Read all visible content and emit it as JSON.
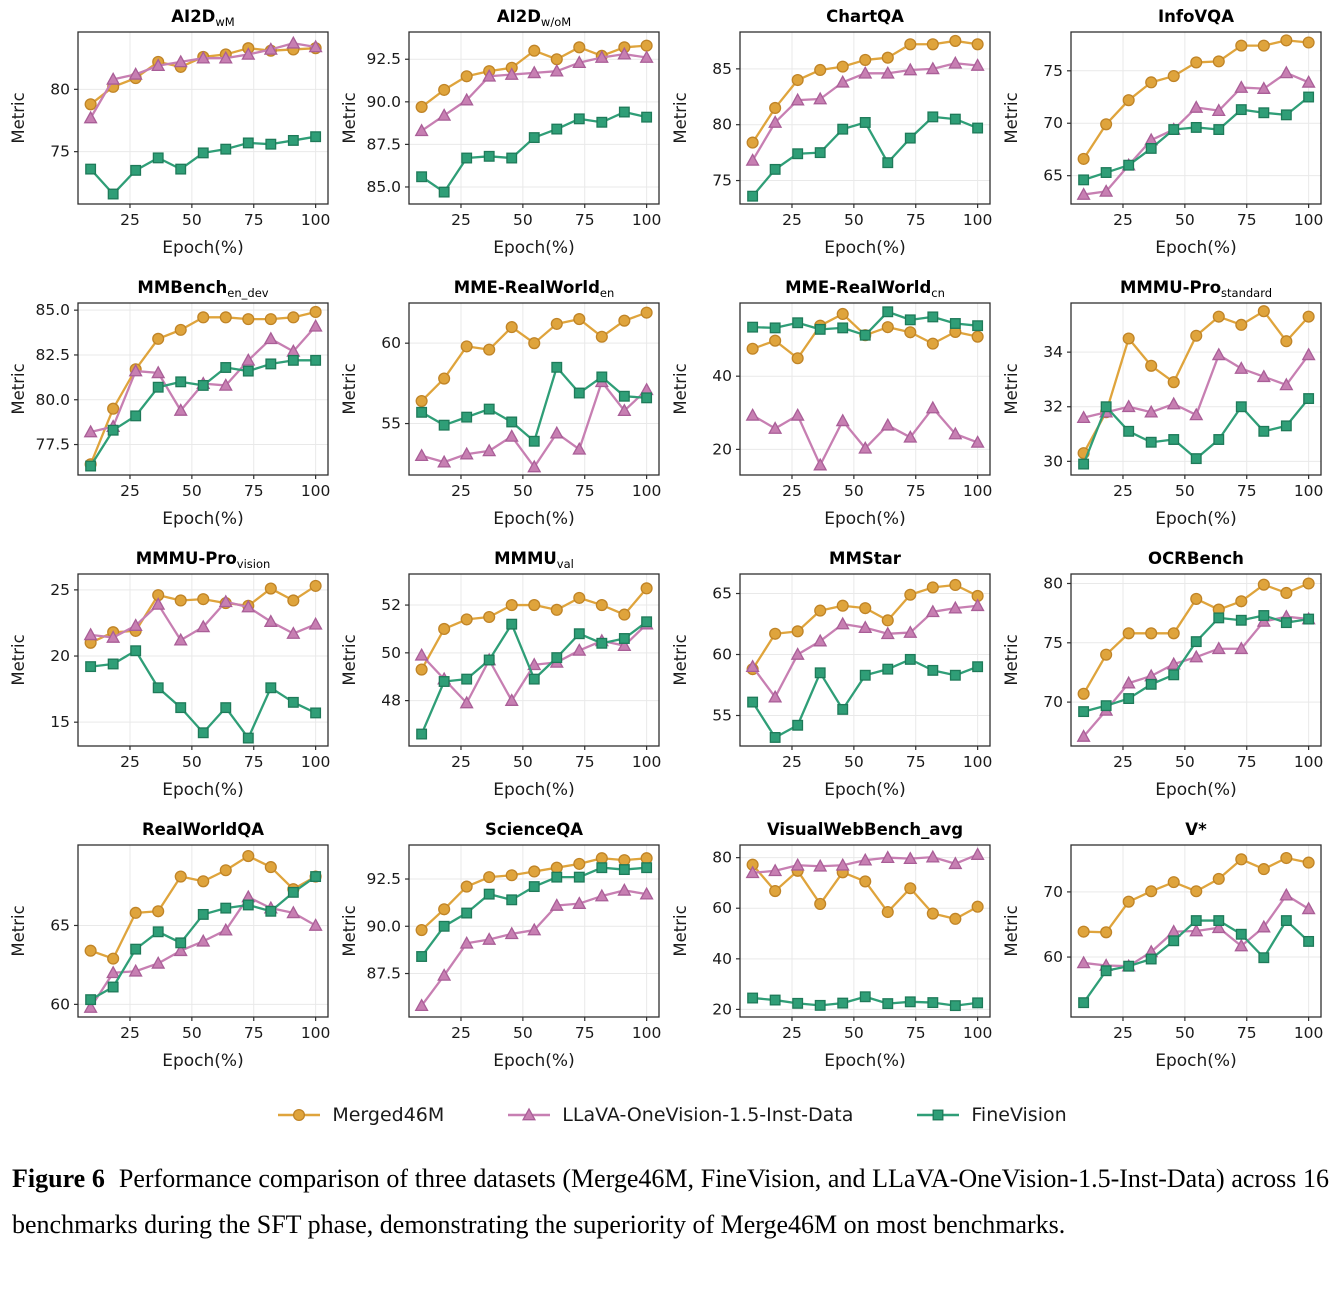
{
  "figure": {
    "caption_label": "Figure 6",
    "caption_text": "Performance comparison of three datasets (Merge46M, FineVision, and LLaVA-OneVision-1.5-Inst-Data) across 16 benchmarks during the SFT phase, demonstrating the superiority of Merge46M on most benchmarks."
  },
  "legend": {
    "items": [
      {
        "label": "Merged46M",
        "marker": "circle",
        "color": "#DFA43C",
        "edge": "#C08427"
      },
      {
        "label": "LLaVA-OneVision-1.5-Inst-Data",
        "marker": "triangle",
        "color": "#C77FB2",
        "edge": "#A95E97"
      },
      {
        "label": "FineVision",
        "marker": "square",
        "color": "#2F9E77",
        "edge": "#1E7A59"
      }
    ]
  },
  "axes": {
    "x_label": "Epoch(%)",
    "y_label": "Metric",
    "x_ticks": [
      25,
      50,
      75,
      100
    ],
    "x": [
      9.1,
      18.2,
      27.3,
      36.4,
      45.5,
      54.6,
      63.7,
      72.8,
      81.9,
      91,
      100
    ],
    "xlim": [
      4,
      105
    ],
    "grid_color": "#e9e9e9",
    "spine_color": "#2f2f2f"
  },
  "chart_data": [
    {
      "type": "line",
      "id": "ai2d-wm",
      "title": "AI2D",
      "title_sub": "wM",
      "y_ticks": [
        "75",
        "80"
      ],
      "ylim": [
        70.8,
        84.6
      ],
      "series": [
        {
          "name": "Merged46M",
          "values": [
            78.8,
            80.2,
            80.9,
            82.2,
            81.8,
            82.6,
            82.8,
            83.3,
            83.1,
            83.2,
            83.3
          ]
        },
        {
          "name": "LLaVA-OneVision-1.5-Inst-Data",
          "values": [
            77.7,
            80.8,
            81.2,
            81.9,
            82.2,
            82.5,
            82.5,
            82.8,
            83.2,
            83.7,
            83.4
          ]
        },
        {
          "name": "FineVision",
          "values": [
            73.6,
            71.6,
            73.5,
            74.5,
            73.6,
            74.9,
            75.2,
            75.7,
            75.6,
            75.9,
            76.2
          ]
        }
      ]
    },
    {
      "type": "line",
      "id": "ai2d-wom",
      "title": "AI2D",
      "title_sub": "w/oM",
      "y_ticks": [
        "85.0",
        "87.5",
        "90.0",
        "92.5"
      ],
      "ylim": [
        84.0,
        94.1
      ],
      "series": [
        {
          "name": "Merged46M",
          "values": [
            89.7,
            90.7,
            91.5,
            91.8,
            92.0,
            93.0,
            92.5,
            93.2,
            92.7,
            93.2,
            93.3
          ]
        },
        {
          "name": "LLaVA-OneVision-1.5-Inst-Data",
          "values": [
            88.3,
            89.2,
            90.1,
            91.5,
            91.6,
            91.7,
            91.8,
            92.3,
            92.6,
            92.8,
            92.6
          ]
        },
        {
          "name": "FineVision",
          "values": [
            85.6,
            84.7,
            86.7,
            86.8,
            86.7,
            87.9,
            88.4,
            89.0,
            88.8,
            89.4,
            89.1
          ]
        }
      ]
    },
    {
      "type": "line",
      "id": "chartqa",
      "title": "ChartQA",
      "title_sub": "",
      "y_ticks": [
        "75",
        "80",
        "85"
      ],
      "ylim": [
        72.9,
        88.3
      ],
      "series": [
        {
          "name": "Merged46M",
          "values": [
            78.4,
            81.5,
            84.0,
            84.9,
            85.2,
            85.8,
            86.0,
            87.2,
            87.2,
            87.5,
            87.2
          ]
        },
        {
          "name": "LLaVA-OneVision-1.5-Inst-Data",
          "values": [
            76.8,
            80.2,
            82.2,
            82.3,
            83.8,
            84.6,
            84.6,
            84.9,
            85.0,
            85.5,
            85.3
          ]
        },
        {
          "name": "FineVision",
          "values": [
            73.6,
            76.0,
            77.4,
            77.5,
            79.6,
            80.2,
            76.6,
            78.8,
            80.7,
            80.5,
            79.7
          ]
        }
      ]
    },
    {
      "type": "line",
      "id": "infovqa",
      "title": "InfoVQA",
      "title_sub": "",
      "y_ticks": [
        "65",
        "70",
        "75"
      ],
      "ylim": [
        62.3,
        78.7
      ],
      "series": [
        {
          "name": "Merged46M",
          "values": [
            66.6,
            69.9,
            72.2,
            73.9,
            74.5,
            75.8,
            75.9,
            77.4,
            77.4,
            77.9,
            77.7
          ]
        },
        {
          "name": "LLaVA-OneVision-1.5-Inst-Data",
          "values": [
            63.2,
            63.5,
            66.0,
            68.4,
            69.4,
            71.5,
            71.2,
            73.4,
            73.3,
            74.8,
            73.9
          ]
        },
        {
          "name": "FineVision",
          "values": [
            64.6,
            65.3,
            66.0,
            67.6,
            69.4,
            69.6,
            69.4,
            71.3,
            71.0,
            70.8,
            72.5
          ]
        }
      ]
    },
    {
      "type": "line",
      "id": "mmbench-en-dev",
      "title": "MMBench",
      "title_sub": "en_dev",
      "y_ticks": [
        "77.5",
        "80.0",
        "82.5",
        "85.0"
      ],
      "ylim": [
        75.8,
        85.4
      ],
      "series": [
        {
          "name": "Merged46M",
          "values": [
            76.4,
            79.5,
            81.7,
            83.4,
            83.9,
            84.6,
            84.6,
            84.5,
            84.5,
            84.6,
            84.9
          ]
        },
        {
          "name": "LLaVA-OneVision-1.5-Inst-Data",
          "values": [
            78.2,
            78.5,
            81.6,
            81.5,
            79.4,
            80.9,
            80.8,
            82.2,
            83.4,
            82.7,
            84.1
          ]
        },
        {
          "name": "FineVision",
          "values": [
            76.3,
            78.3,
            79.1,
            80.7,
            81.0,
            80.8,
            81.8,
            81.6,
            82.0,
            82.2,
            82.2
          ]
        }
      ]
    },
    {
      "type": "line",
      "id": "mme-realworld-en",
      "title": "MME-RealWorld",
      "title_sub": "en",
      "y_ticks": [
        "55",
        "60"
      ],
      "ylim": [
        51.8,
        62.5
      ],
      "series": [
        {
          "name": "Merged46M",
          "values": [
            56.4,
            57.8,
            59.8,
            59.6,
            61.0,
            60.0,
            61.2,
            61.5,
            60.4,
            61.4,
            61.9
          ]
        },
        {
          "name": "LLaVA-OneVision-1.5-Inst-Data",
          "values": [
            53.0,
            52.6,
            53.1,
            53.3,
            54.2,
            52.3,
            54.4,
            53.4,
            57.6,
            55.8,
            57.1
          ]
        },
        {
          "name": "FineVision",
          "values": [
            55.7,
            54.9,
            55.4,
            55.9,
            55.1,
            53.9,
            58.5,
            56.9,
            57.9,
            56.7,
            56.6
          ]
        }
      ]
    },
    {
      "type": "line",
      "id": "mme-realworld-cn",
      "title": "MME-RealWorld",
      "title_sub": "cn",
      "y_ticks": [
        "20",
        "40"
      ],
      "ylim": [
        13,
        60
      ],
      "series": [
        {
          "name": "Merged46M",
          "values": [
            47.5,
            49.7,
            44.9,
            53.8,
            57.0,
            51.2,
            53.4,
            52.0,
            48.9,
            52.1,
            50.8
          ]
        },
        {
          "name": "LLaVA-OneVision-1.5-Inst-Data",
          "values": [
            29.3,
            25.7,
            29.3,
            15.7,
            27.8,
            20.3,
            26.6,
            23.3,
            31.3,
            24.2,
            21.9
          ]
        },
        {
          "name": "FineVision",
          "values": [
            53.4,
            53.2,
            54.6,
            52.8,
            53.2,
            51.2,
            57.6,
            55.4,
            56.2,
            54.4,
            53.8
          ]
        }
      ]
    },
    {
      "type": "line",
      "id": "mmmu-pro-standard",
      "title": "MMMU-Pro",
      "title_sub": "standard",
      "y_ticks": [
        "30",
        "32",
        "34"
      ],
      "ylim": [
        29.5,
        35.8
      ],
      "series": [
        {
          "name": "Merged46M",
          "values": [
            30.3,
            31.8,
            34.5,
            33.5,
            32.9,
            34.6,
            35.3,
            35.0,
            35.5,
            34.4,
            35.3
          ]
        },
        {
          "name": "LLaVA-OneVision-1.5-Inst-Data",
          "values": [
            31.6,
            31.8,
            32.0,
            31.8,
            32.1,
            31.7,
            33.9,
            33.4,
            33.1,
            32.8,
            33.9
          ]
        },
        {
          "name": "FineVision",
          "values": [
            29.9,
            32.0,
            31.1,
            30.7,
            30.8,
            30.1,
            30.8,
            32.0,
            31.1,
            31.3,
            32.3
          ]
        }
      ]
    },
    {
      "type": "line",
      "id": "mmmu-pro-vision",
      "title": "MMMU-Pro",
      "title_sub": "vision",
      "y_ticks": [
        "15",
        "20",
        "25"
      ],
      "ylim": [
        13.2,
        26.2
      ],
      "series": [
        {
          "name": "Merged46M",
          "values": [
            21.0,
            21.8,
            21.9,
            24.6,
            24.2,
            24.3,
            24.0,
            23.8,
            25.1,
            24.2,
            25.3
          ]
        },
        {
          "name": "LLaVA-OneVision-1.5-Inst-Data",
          "values": [
            21.6,
            21.4,
            22.3,
            23.9,
            21.2,
            22.2,
            24.1,
            23.7,
            22.6,
            21.7,
            22.4
          ]
        },
        {
          "name": "FineVision",
          "values": [
            19.2,
            19.4,
            20.4,
            17.6,
            16.1,
            14.2,
            16.1,
            13.8,
            17.6,
            16.5,
            15.7
          ]
        }
      ]
    },
    {
      "type": "line",
      "id": "mmmu-val",
      "title": "MMMU",
      "title_sub": "val",
      "y_ticks": [
        "48",
        "50",
        "52"
      ],
      "ylim": [
        46.1,
        53.3
      ],
      "series": [
        {
          "name": "Merged46M",
          "values": [
            49.3,
            51.0,
            51.4,
            51.5,
            52.0,
            52.0,
            51.8,
            52.3,
            52.0,
            51.6,
            52.7
          ]
        },
        {
          "name": "LLaVA-OneVision-1.5-Inst-Data",
          "values": [
            49.9,
            48.9,
            47.9,
            49.7,
            48.0,
            49.5,
            49.6,
            50.1,
            50.5,
            50.3,
            51.2
          ]
        },
        {
          "name": "FineVision",
          "values": [
            46.6,
            48.8,
            48.9,
            49.7,
            51.2,
            48.9,
            49.8,
            50.8,
            50.4,
            50.6,
            51.3
          ]
        }
      ]
    },
    {
      "type": "line",
      "id": "mmstar",
      "title": "MMStar",
      "title_sub": "",
      "y_ticks": [
        "55",
        "60",
        "65"
      ],
      "ylim": [
        52.5,
        66.6
      ],
      "series": [
        {
          "name": "Merged46M",
          "values": [
            58.8,
            61.7,
            61.9,
            63.6,
            64.0,
            63.8,
            62.8,
            64.9,
            65.5,
            65.7,
            64.8
          ]
        },
        {
          "name": "LLaVA-OneVision-1.5-Inst-Data",
          "values": [
            59.0,
            56.5,
            60.0,
            61.1,
            62.5,
            62.2,
            61.7,
            61.8,
            63.5,
            63.8,
            64.0
          ]
        },
        {
          "name": "FineVision",
          "values": [
            56.1,
            53.2,
            54.2,
            58.5,
            55.5,
            58.3,
            58.8,
            59.6,
            58.7,
            58.3,
            59.0
          ]
        }
      ]
    },
    {
      "type": "line",
      "id": "ocrbench",
      "title": "OCRBench",
      "title_sub": "",
      "y_ticks": [
        "70",
        "75",
        "80"
      ],
      "ylim": [
        66.3,
        80.8
      ],
      "series": [
        {
          "name": "Merged46M",
          "values": [
            70.7,
            74.0,
            75.8,
            75.8,
            75.8,
            78.7,
            77.8,
            78.5,
            79.9,
            79.2,
            80.0
          ]
        },
        {
          "name": "LLaVA-OneVision-1.5-Inst-Data",
          "values": [
            67.1,
            69.3,
            71.6,
            72.2,
            73.2,
            73.8,
            74.5,
            74.5,
            76.8,
            77.2,
            77.0
          ]
        },
        {
          "name": "FineVision",
          "values": [
            69.2,
            69.7,
            70.3,
            71.5,
            72.3,
            75.1,
            77.1,
            76.9,
            77.3,
            76.7,
            77.0
          ]
        }
      ]
    },
    {
      "type": "line",
      "id": "realworldqa",
      "title": "RealWorldQA",
      "title_sub": "",
      "y_ticks": [
        "60",
        "65"
      ],
      "ylim": [
        59.2,
        70.1
      ],
      "series": [
        {
          "name": "Merged46M",
          "values": [
            63.4,
            62.9,
            65.8,
            65.9,
            68.1,
            67.8,
            68.5,
            69.4,
            68.7,
            67.3,
            68.1
          ]
        },
        {
          "name": "LLaVA-OneVision-1.5-Inst-Data",
          "values": [
            59.8,
            62.0,
            62.1,
            62.6,
            63.4,
            64.0,
            64.7,
            66.8,
            66.1,
            65.8,
            65.0
          ]
        },
        {
          "name": "FineVision",
          "values": [
            60.3,
            61.1,
            63.5,
            64.6,
            63.9,
            65.7,
            66.1,
            66.3,
            65.9,
            67.1,
            68.1
          ]
        }
      ]
    },
    {
      "type": "line",
      "id": "scienceqa",
      "title": "ScienceQA",
      "title_sub": "",
      "y_ticks": [
        "87.5",
        "90.0",
        "92.5"
      ],
      "ylim": [
        85.2,
        94.3
      ],
      "series": [
        {
          "name": "Merged46M",
          "values": [
            89.8,
            90.9,
            92.1,
            92.6,
            92.7,
            92.9,
            93.1,
            93.3,
            93.6,
            93.5,
            93.6
          ]
        },
        {
          "name": "LLaVA-OneVision-1.5-Inst-Data",
          "values": [
            85.8,
            87.4,
            89.1,
            89.3,
            89.6,
            89.8,
            91.1,
            91.2,
            91.6,
            91.9,
            91.7
          ]
        },
        {
          "name": "FineVision",
          "values": [
            88.4,
            90.0,
            90.7,
            91.7,
            91.4,
            92.1,
            92.6,
            92.6,
            93.1,
            93.0,
            93.1
          ]
        }
      ]
    },
    {
      "type": "line",
      "id": "visualwebbench-avg",
      "title": "VisualWebBench_avg",
      "title_sub": "",
      "y_ticks": [
        "20",
        "40",
        "60",
        "80"
      ],
      "ylim": [
        17,
        85
      ],
      "series": [
        {
          "name": "Merged46M",
          "values": [
            77.2,
            66.8,
            74.8,
            61.7,
            74.2,
            70.6,
            58.5,
            67.9,
            57.9,
            55.8,
            60.6
          ]
        },
        {
          "name": "LLaVA-OneVision-1.5-Inst-Data",
          "values": [
            74.0,
            74.8,
            77.0,
            76.6,
            77.0,
            79.0,
            80.0,
            79.6,
            80.2,
            77.6,
            81.2
          ]
        },
        {
          "name": "FineVision",
          "values": [
            24.5,
            23.7,
            22.4,
            21.6,
            22.5,
            25.0,
            22.3,
            23.0,
            22.7,
            21.5,
            22.6
          ]
        }
      ]
    },
    {
      "type": "line",
      "id": "v-star",
      "title": "V*",
      "title_sub": "",
      "y_ticks": [
        "60",
        "70"
      ],
      "ylim": [
        50.8,
        77.2
      ],
      "series": [
        {
          "name": "Merged46M",
          "values": [
            63.9,
            63.8,
            68.5,
            70.1,
            71.5,
            70.1,
            72.0,
            75.0,
            73.5,
            75.2,
            74.5
          ]
        },
        {
          "name": "LLaVA-OneVision-1.5-Inst-Data",
          "values": [
            59.1,
            58.7,
            58.6,
            60.8,
            63.9,
            64.0,
            64.5,
            61.7,
            64.6,
            69.5,
            67.4
          ]
        },
        {
          "name": "FineVision",
          "values": [
            53.0,
            57.9,
            58.6,
            59.7,
            62.5,
            65.6,
            65.6,
            63.5,
            59.9,
            65.6,
            62.4
          ]
        }
      ]
    }
  ]
}
